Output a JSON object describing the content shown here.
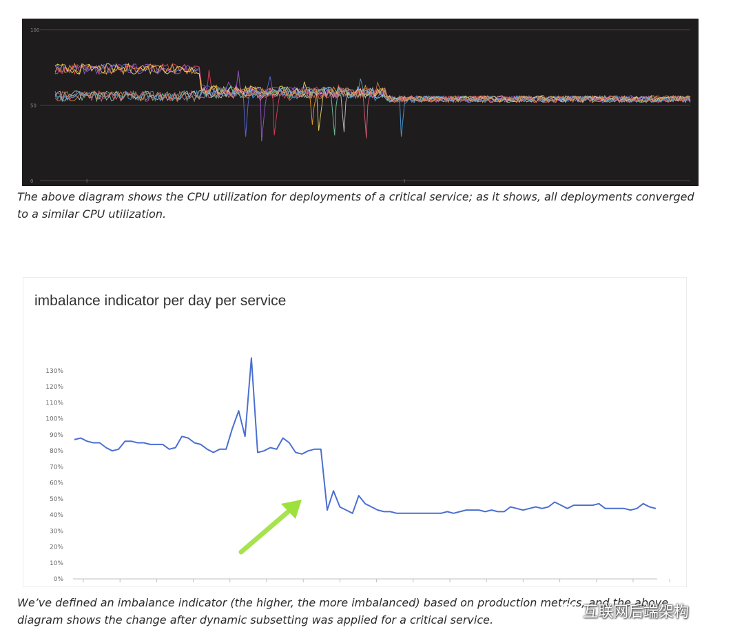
{
  "chart_data": [
    {
      "type": "line",
      "title": "",
      "xlabel": "",
      "ylabel": "",
      "ylim": [
        0,
        100
      ],
      "y_ticks": [
        "100",
        "50",
        "0"
      ],
      "grid": true,
      "background": "#1e1c1d",
      "series_colors": [
        "#5a6ee0",
        "#9b59d0",
        "#e0405a",
        "#f0a030",
        "#e8d86a",
        "#7ac8a0",
        "#c8c8c8",
        "#e06080",
        "#4aa0e0",
        "#d08040"
      ],
      "phases": [
        {
          "x_range": [
            0,
            0.23
          ],
          "group_high_level": 74,
          "group_low_level": 56
        },
        {
          "x_range": [
            0.23,
            0.52
          ],
          "level": 58,
          "note": "transition with spikes"
        },
        {
          "x_range": [
            0.52,
            1.0
          ],
          "level": 54
        }
      ],
      "dips": [
        {
          "x": 0.3,
          "y": 29
        },
        {
          "x": 0.325,
          "y": 26
        },
        {
          "x": 0.345,
          "y": 30
        },
        {
          "x": 0.405,
          "y": 37
        },
        {
          "x": 0.415,
          "y": 33
        },
        {
          "x": 0.44,
          "y": 30
        },
        {
          "x": 0.455,
          "y": 32
        },
        {
          "x": 0.49,
          "y": 28
        },
        {
          "x": 0.545,
          "y": 29
        }
      ]
    },
    {
      "type": "line",
      "title": "imbalance indicator per day per service",
      "xlabel": "",
      "ylabel": "",
      "ylim": [
        0,
        130
      ],
      "y_ticks": [
        "130%",
        "120%",
        "110%",
        "100%",
        "90%",
        "80%",
        "70%",
        "60%",
        "50%",
        "40%",
        "30%",
        "20%",
        "10%",
        "0%"
      ],
      "y_tick_values": [
        130,
        120,
        110,
        100,
        90,
        80,
        70,
        60,
        50,
        40,
        30,
        20,
        10,
        0
      ],
      "grid": false,
      "line_color": "#4a6fd0",
      "annotation": {
        "type": "arrow",
        "color": "#9ee03c",
        "label": ""
      },
      "values": [
        87,
        88,
        86,
        85,
        85,
        82,
        80,
        81,
        86,
        86,
        85,
        85,
        84,
        84,
        84,
        81,
        82,
        89,
        88,
        85,
        84,
        81,
        79,
        81,
        81,
        94,
        105,
        89,
        138,
        79,
        80,
        82,
        81,
        88,
        85,
        79,
        78,
        80,
        81,
        81,
        43,
        55,
        45,
        43,
        41,
        52,
        47,
        45,
        43,
        42,
        42,
        41,
        41,
        41,
        41,
        41,
        41,
        41,
        41,
        42,
        41,
        42,
        43,
        43,
        43,
        42,
        43,
        42,
        42,
        45,
        44,
        43,
        44,
        45,
        44,
        45,
        48,
        46,
        44,
        46,
        46,
        46,
        46,
        47,
        44,
        44,
        44,
        44,
        43,
        44,
        47,
        45,
        44
      ]
    }
  ],
  "captions": {
    "first": "The above diagram shows the CPU utilization for deployments of a critical service; as it shows, all deployments converged to a similar CPU utilization.",
    "second": "We’ve defined an imbalance indicator (the higher, the more imbalanced) based on production metrics, and the above diagram shows the change after dynamic subsetting was applied for a critical service."
  },
  "watermark": {
    "text": "互联网后端架构",
    "icon": "wechat-icon"
  }
}
